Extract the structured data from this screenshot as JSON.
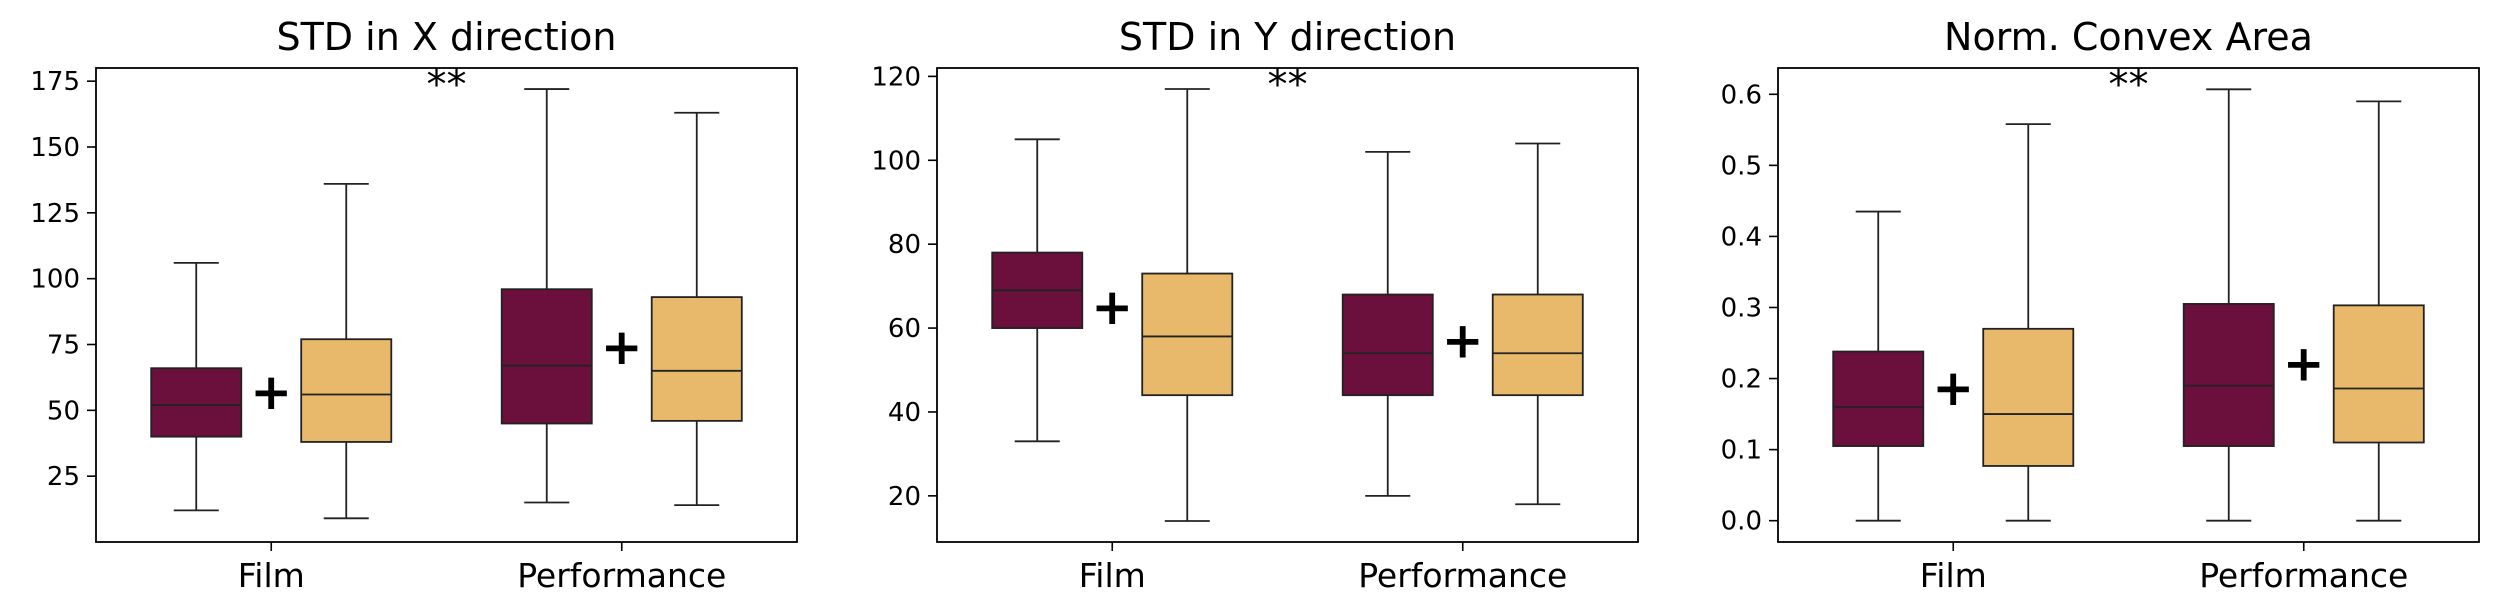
{
  "chart_data": [
    {
      "type": "box",
      "title": "STD in X direction",
      "categories": [
        "Film",
        "Performance"
      ],
      "ylim": [
        0,
        180
      ],
      "yticks": [
        25,
        50,
        75,
        100,
        125,
        150,
        175
      ],
      "series": [
        {
          "color": "#6b0f3c",
          "boxes": [
            {
              "whislo": 12,
              "q1": 40,
              "med": 52,
              "q3": 66,
              "whishi": 106,
              "mean": 57
            },
            {
              "whislo": 15,
              "q1": 45,
              "med": 67,
              "q3": 96,
              "whishi": 172,
              "mean": 74
            }
          ]
        },
        {
          "color": "#e8b96a",
          "boxes": [
            {
              "whislo": 9,
              "q1": 38,
              "med": 56,
              "q3": 77,
              "whishi": 136,
              "mean": 57
            },
            {
              "whislo": 14,
              "q1": 46,
              "med": 65,
              "q3": 93,
              "whishi": 163,
              "mean": 74
            }
          ]
        }
      ],
      "significance": "**"
    },
    {
      "type": "box",
      "title": "STD in Y direction",
      "categories": [
        "Film",
        "Performance"
      ],
      "ylim": [
        9,
        122
      ],
      "yticks": [
        20,
        40,
        60,
        80,
        100,
        120
      ],
      "series": [
        {
          "color": "#6b0f3c",
          "boxes": [
            {
              "whislo": 33,
              "q1": 60,
              "med": 69,
              "q3": 78,
              "whishi": 105,
              "mean": 65
            },
            {
              "whislo": 20,
              "q1": 44,
              "med": 54,
              "q3": 68,
              "whishi": 102,
              "mean": 57
            }
          ]
        },
        {
          "color": "#e8b96a",
          "boxes": [
            {
              "whislo": 14,
              "q1": 44,
              "med": 58,
              "q3": 73,
              "whishi": 117,
              "mean": 65
            },
            {
              "whislo": 18,
              "q1": 44,
              "med": 54,
              "q3": 68,
              "whishi": 104,
              "mean": 57
            }
          ]
        }
      ],
      "significance": "**"
    },
    {
      "type": "box",
      "title": "Norm. Convex Area",
      "categories": [
        "Film",
        "Performance"
      ],
      "ylim": [
        -0.03,
        0.637
      ],
      "yticks": [
        0.0,
        0.1,
        0.2,
        0.3,
        0.4,
        0.5,
        0.6
      ],
      "series": [
        {
          "color": "#6b0f3c",
          "boxes": [
            {
              "whislo": 0.0,
              "q1": 0.105,
              "med": 0.16,
              "q3": 0.238,
              "whishi": 0.435,
              "mean": 0.187
            },
            {
              "whislo": 0.0,
              "q1": 0.105,
              "med": 0.19,
              "q3": 0.305,
              "whishi": 0.607,
              "mean": 0.221
            }
          ]
        },
        {
          "color": "#e8b96a",
          "boxes": [
            {
              "whislo": 0.0,
              "q1": 0.077,
              "med": 0.15,
              "q3": 0.27,
              "whishi": 0.558,
              "mean": 0.187
            },
            {
              "whislo": 0.0,
              "q1": 0.11,
              "med": 0.186,
              "q3": 0.303,
              "whishi": 0.59,
              "mean": 0.221
            }
          ]
        }
      ],
      "significance": "**"
    }
  ]
}
